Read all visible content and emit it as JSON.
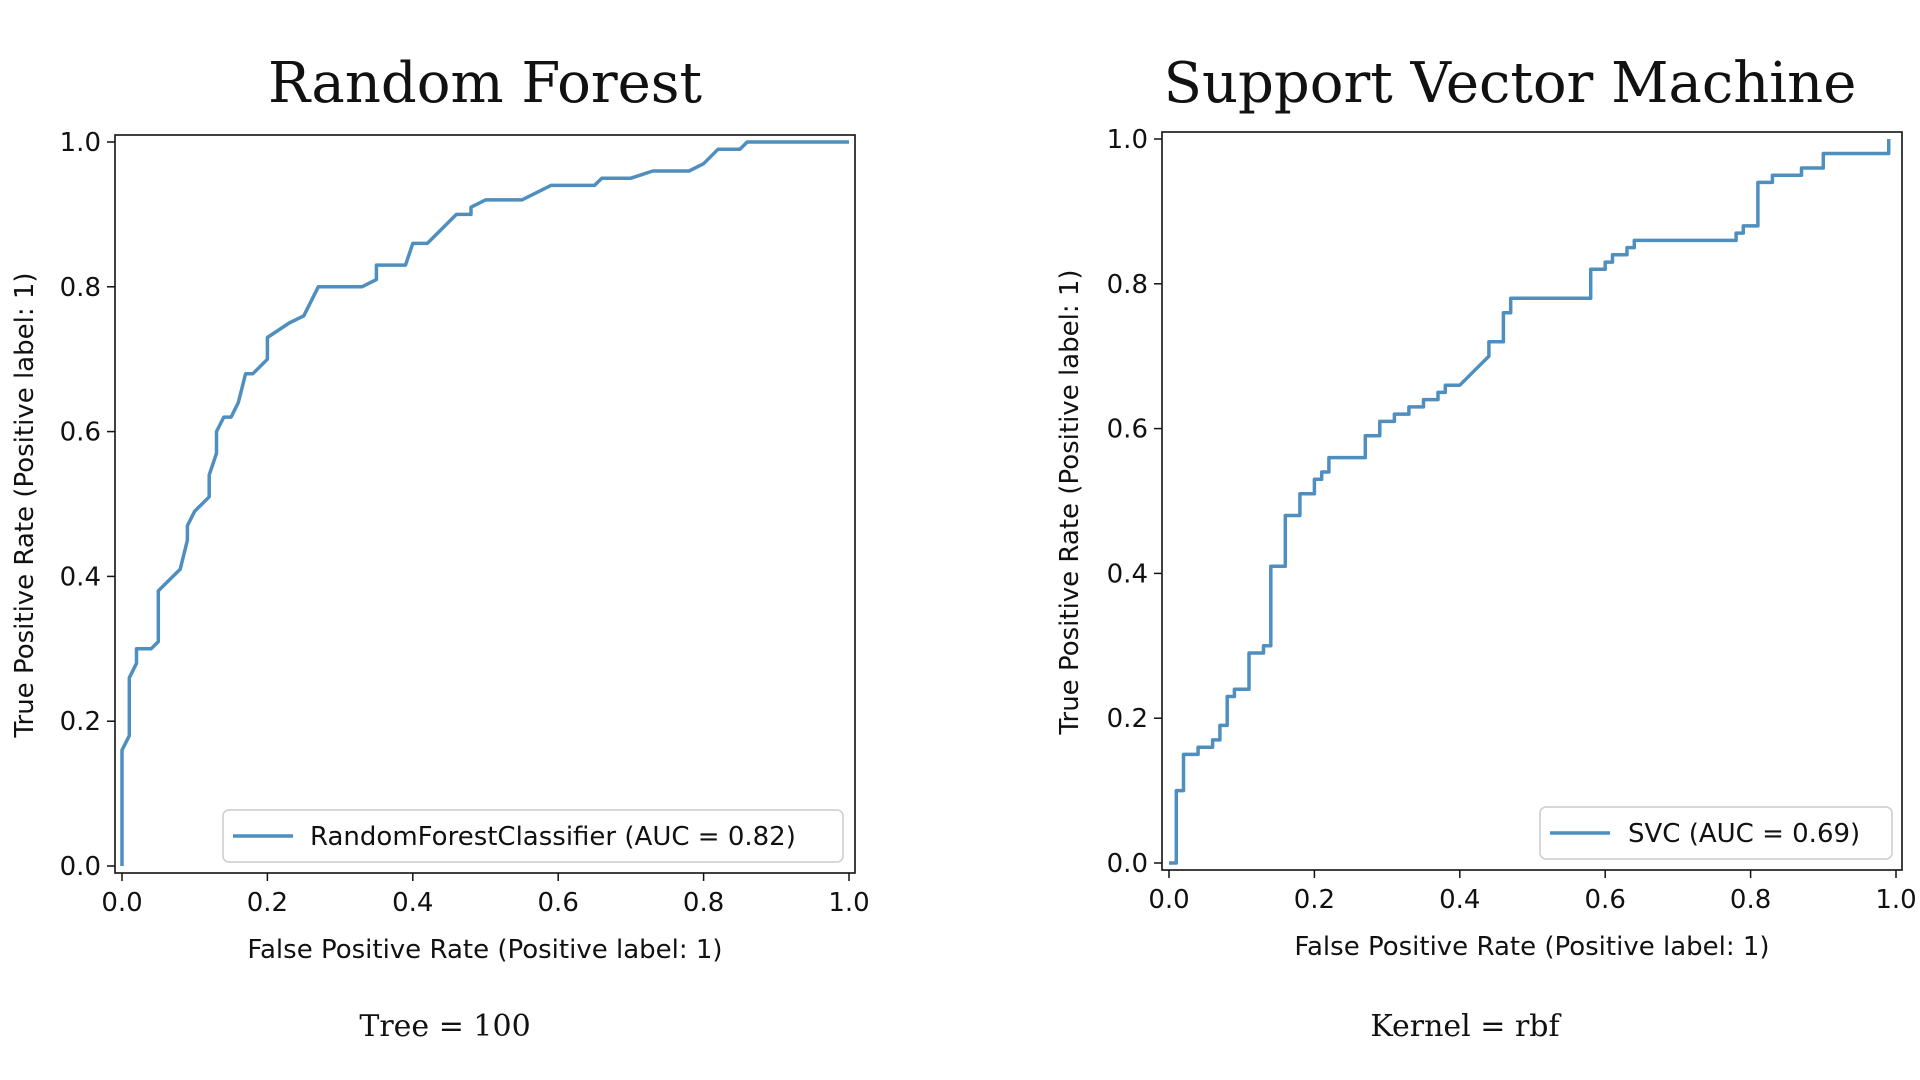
{
  "chart_data": [
    {
      "type": "line",
      "title": "Random Forest",
      "caption": "Tree = 100",
      "xlabel": "False Positive Rate (Positive label: 1)",
      "ylabel": "True Positive Rate (Positive label: 1)",
      "xlim": [
        0,
        1
      ],
      "ylim": [
        0,
        1
      ],
      "xticks": [
        "0.0",
        "0.2",
        "0.4",
        "0.6",
        "0.8",
        "1.0"
      ],
      "yticks": [
        "0.0",
        "0.2",
        "0.4",
        "0.6",
        "0.8",
        "1.0"
      ],
      "legend_position": "bottom-right",
      "grid": false,
      "series": [
        {
          "name": "RandomForestClassifier (AUC = 0.82)",
          "color": "#4f8fbf",
          "x": [
            0.0,
            0.0,
            0.01,
            0.01,
            0.02,
            0.02,
            0.04,
            0.05,
            0.05,
            0.06,
            0.08,
            0.09,
            0.09,
            0.1,
            0.11,
            0.12,
            0.12,
            0.13,
            0.13,
            0.14,
            0.15,
            0.16,
            0.17,
            0.18,
            0.2,
            0.2,
            0.23,
            0.25,
            0.27,
            0.28,
            0.33,
            0.35,
            0.35,
            0.39,
            0.4,
            0.42,
            0.44,
            0.46,
            0.48,
            0.48,
            0.5,
            0.55,
            0.59,
            0.63,
            0.65,
            0.66,
            0.68,
            0.7,
            0.73,
            0.78,
            0.8,
            0.8,
            0.82,
            0.84,
            0.85,
            0.86,
            1.0
          ],
          "y": [
            0.0,
            0.16,
            0.18,
            0.26,
            0.28,
            0.3,
            0.3,
            0.31,
            0.38,
            0.39,
            0.41,
            0.45,
            0.47,
            0.49,
            0.5,
            0.51,
            0.54,
            0.57,
            0.6,
            0.62,
            0.62,
            0.64,
            0.68,
            0.68,
            0.7,
            0.73,
            0.75,
            0.76,
            0.8,
            0.8,
            0.8,
            0.81,
            0.83,
            0.83,
            0.86,
            0.86,
            0.88,
            0.9,
            0.9,
            0.91,
            0.92,
            0.92,
            0.94,
            0.94,
            0.94,
            0.95,
            0.95,
            0.95,
            0.96,
            0.96,
            0.97,
            0.97,
            0.99,
            0.99,
            0.99,
            1.0,
            1.0
          ]
        }
      ]
    },
    {
      "type": "line",
      "title": "Support Vector Machine",
      "caption": "Kernel = rbf",
      "xlabel": "False Positive Rate (Positive label: 1)",
      "ylabel": "True Positive Rate (Positive label: 1)",
      "xlim": [
        0,
        1
      ],
      "ylim": [
        0,
        1
      ],
      "xticks": [
        "0.0",
        "0.2",
        "0.4",
        "0.6",
        "0.8",
        "1.0"
      ],
      "yticks": [
        "0.0",
        "0.2",
        "0.4",
        "0.6",
        "0.8",
        "1.0"
      ],
      "legend_position": "bottom-right",
      "grid": false,
      "series": [
        {
          "name": "SVC (AUC = 0.69)",
          "color": "#4f8fbf",
          "x": [
            0.0,
            0.01,
            0.01,
            0.02,
            0.02,
            0.04,
            0.04,
            0.06,
            0.06,
            0.07,
            0.07,
            0.08,
            0.08,
            0.09,
            0.09,
            0.11,
            0.11,
            0.13,
            0.13,
            0.14,
            0.14,
            0.16,
            0.16,
            0.18,
            0.18,
            0.2,
            0.2,
            0.21,
            0.21,
            0.22,
            0.22,
            0.27,
            0.27,
            0.29,
            0.29,
            0.31,
            0.31,
            0.33,
            0.33,
            0.35,
            0.35,
            0.37,
            0.37,
            0.38,
            0.38,
            0.4,
            0.42,
            0.42,
            0.44,
            0.44,
            0.46,
            0.46,
            0.47,
            0.47,
            0.49,
            0.49,
            0.58,
            0.58,
            0.6,
            0.6,
            0.61,
            0.61,
            0.63,
            0.63,
            0.64,
            0.64,
            0.78,
            0.78,
            0.79,
            0.79,
            0.81,
            0.81,
            0.83,
            0.83,
            0.87,
            0.87,
            0.9,
            0.9,
            0.99,
            0.99
          ],
          "y": [
            0.0,
            0.0,
            0.1,
            0.1,
            0.15,
            0.15,
            0.16,
            0.16,
            0.17,
            0.17,
            0.19,
            0.19,
            0.23,
            0.23,
            0.24,
            0.24,
            0.29,
            0.29,
            0.3,
            0.3,
            0.41,
            0.41,
            0.48,
            0.48,
            0.51,
            0.51,
            0.53,
            0.53,
            0.54,
            0.54,
            0.56,
            0.56,
            0.59,
            0.59,
            0.61,
            0.61,
            0.62,
            0.62,
            0.63,
            0.63,
            0.64,
            0.64,
            0.65,
            0.65,
            0.66,
            0.66,
            0.68,
            0.68,
            0.7,
            0.72,
            0.72,
            0.76,
            0.76,
            0.78,
            0.78,
            0.78,
            0.78,
            0.82,
            0.82,
            0.83,
            0.83,
            0.84,
            0.84,
            0.85,
            0.85,
            0.86,
            0.86,
            0.87,
            0.87,
            0.88,
            0.88,
            0.94,
            0.94,
            0.95,
            0.95,
            0.96,
            0.96,
            0.98,
            0.98,
            1.0
          ]
        }
      ]
    }
  ]
}
